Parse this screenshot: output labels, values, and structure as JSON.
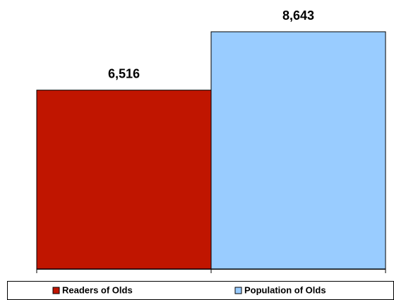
{
  "chart_data": {
    "type": "bar",
    "series": [
      {
        "name": "Readers of Olds",
        "color": "#c01500",
        "values": [
          6516
        ],
        "value_labels": [
          "6,516"
        ]
      },
      {
        "name": "Population of Olds",
        "color": "#99ccff",
        "values": [
          8643
        ],
        "value_labels": [
          "8,643"
        ]
      }
    ]
  }
}
